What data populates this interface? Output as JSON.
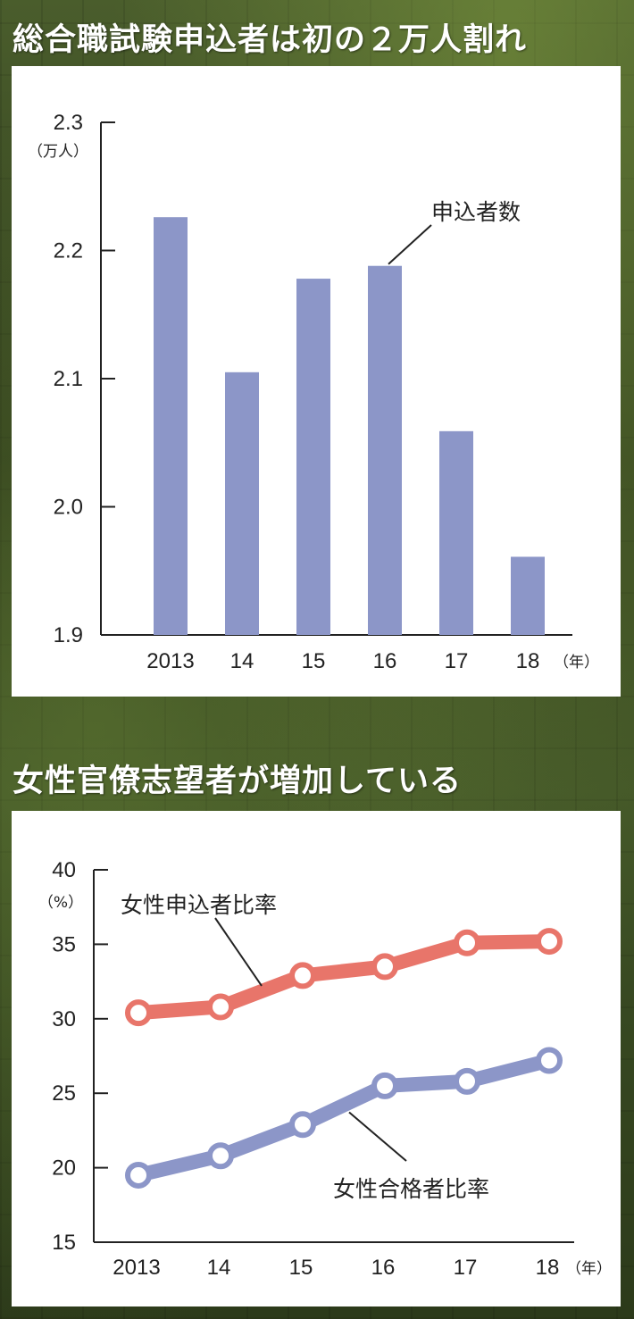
{
  "chart_data": [
    {
      "type": "bar",
      "title": "総合職試験申込者は初の２万人割れ",
      "y_unit": "（万人）",
      "x_unit": "（年）",
      "categories": [
        "2013",
        "14",
        "15",
        "16",
        "17",
        "18"
      ],
      "ylim": [
        1.9,
        2.3
      ],
      "yticks": [
        "1.9",
        "2.0",
        "2.1",
        "2.2",
        "2.3"
      ],
      "series": [
        {
          "name": "申込者数",
          "color": "#8c96c8",
          "values": [
            2.226,
            2.105,
            2.178,
            2.188,
            2.059,
            1.961
          ]
        }
      ]
    },
    {
      "type": "line",
      "title": "女性官僚志望者が増加している",
      "y_unit": "（%）",
      "x_unit": "（年）",
      "categories": [
        "2013",
        "14",
        "15",
        "16",
        "17",
        "18"
      ],
      "ylim": [
        15,
        40
      ],
      "yticks": [
        "15",
        "20",
        "25",
        "30",
        "35",
        "40"
      ],
      "series": [
        {
          "name": "女性申込者比率",
          "color": "#e8756a",
          "values": [
            30.4,
            30.8,
            32.9,
            33.5,
            35.1,
            35.2
          ]
        },
        {
          "name": "女性合格者比率",
          "color": "#8c96c8",
          "values": [
            19.5,
            20.8,
            22.9,
            25.5,
            25.8,
            27.2
          ]
        }
      ]
    }
  ]
}
